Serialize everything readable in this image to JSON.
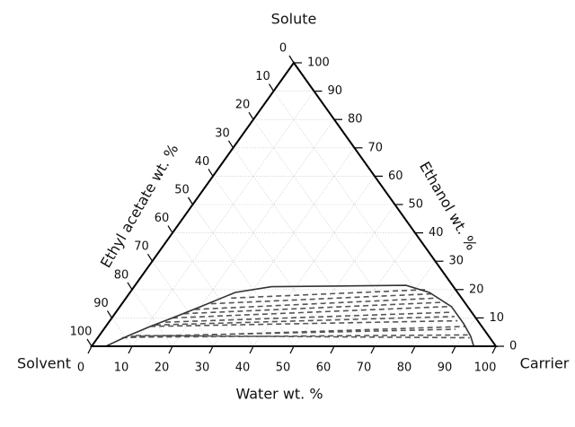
{
  "chart_data": {
    "type": "ternary",
    "vertices": {
      "top": "Solute",
      "left": "Solvent",
      "right": "Carrier"
    },
    "axes": {
      "bottom": {
        "label": "Water wt. %",
        "ticks": [
          "0",
          "10",
          "20",
          "30",
          "40",
          "50",
          "60",
          "70",
          "80",
          "90",
          "100"
        ]
      },
      "left": {
        "label": "Ethyl acetate wt. %",
        "ticks": [
          "0",
          "10",
          "20",
          "30",
          "40",
          "50",
          "60",
          "70",
          "80",
          "90",
          "100"
        ]
      },
      "right": {
        "label": "Ethanol wt. %",
        "ticks": [
          "0",
          "10",
          "20",
          "30",
          "40",
          "50",
          "60",
          "70",
          "80",
          "90",
          "100"
        ]
      }
    },
    "grid": true,
    "binodal_curve": [
      {
        "water": 3.5,
        "ethanol": 0
      },
      {
        "water": 7,
        "ethanol": 3.5
      },
      {
        "water": 11,
        "ethanol": 7
      },
      {
        "water": 15,
        "ethanol": 10
      },
      {
        "water": 20,
        "ethanol": 14
      },
      {
        "water": 26,
        "ethanol": 19
      },
      {
        "water": 34,
        "ethanol": 21
      },
      {
        "water": 67,
        "ethanol": 21.5
      },
      {
        "water": 74,
        "ethanol": 19
      },
      {
        "water": 82,
        "ethanol": 14
      },
      {
        "water": 88,
        "ethanol": 8
      },
      {
        "water": 92,
        "ethanol": 3.5
      },
      {
        "water": 94.5,
        "ethanol": 0
      }
    ],
    "tie_lines": [
      {
        "from": {
          "water": 6,
          "ethanol": 3
        },
        "to": {
          "water": 89,
          "ethanol": 7
        }
      },
      {
        "from": {
          "water": 8,
          "ethanol": 3.5
        },
        "to": {
          "water": 87,
          "ethanol": 6
        }
      },
      {
        "from": {
          "water": 8,
          "ethanol": 3.2
        },
        "to": {
          "water": 91,
          "ethanol": 4
        }
      },
      {
        "from": {
          "water": 9,
          "ethanol": 3.8
        },
        "to": {
          "water": 92,
          "ethanol": 3
        }
      },
      {
        "from": {
          "water": 11,
          "ethanol": 7
        },
        "to": {
          "water": 86,
          "ethanol": 9
        }
      },
      {
        "from": {
          "water": 12,
          "ethanol": 7.5
        },
        "to": {
          "water": 84.5,
          "ethanol": 10.5
        }
      },
      {
        "from": {
          "water": 14,
          "ethanol": 8.5
        },
        "to": {
          "water": 83,
          "ethanol": 12
        }
      },
      {
        "from": {
          "water": 15,
          "ethanol": 10
        },
        "to": {
          "water": 81,
          "ethanol": 14
        }
      },
      {
        "from": {
          "water": 17,
          "ethanol": 11.5
        },
        "to": {
          "water": 79,
          "ethanol": 15.5
        }
      },
      {
        "from": {
          "water": 19,
          "ethanol": 13
        },
        "to": {
          "water": 77,
          "ethanol": 17
        }
      },
      {
        "from": {
          "water": 22,
          "ethanol": 15
        },
        "to": {
          "water": 75,
          "ethanol": 18.5
        }
      },
      {
        "from": {
          "water": 26,
          "ethanol": 17
        },
        "to": {
          "water": 73,
          "ethanol": 20
        }
      }
    ],
    "colors": {
      "frame": "#000000",
      "curve": "#333333",
      "tie_line": "#555555",
      "grid": "#cccccc"
    }
  }
}
